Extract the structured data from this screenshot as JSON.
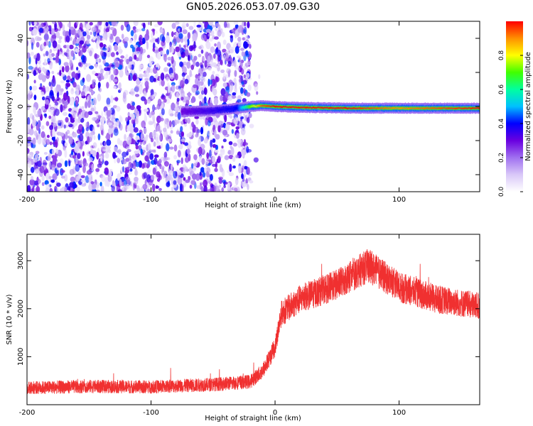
{
  "title": "GN05.2026.053.07.09.G30",
  "chart_data": [
    {
      "type": "heatmap",
      "xlabel": "Height of straight line (km)",
      "ylabel": "Frequency (Hz)",
      "xlim": [
        -200,
        165
      ],
      "ylim": [
        -50,
        50
      ],
      "xticks": [
        -200,
        -100,
        0,
        100
      ],
      "yticks": [
        -40,
        -20,
        0,
        20,
        40
      ],
      "colorbar": {
        "label": "Normalized spectral amplitude",
        "range": [
          0,
          1
        ],
        "ticks": [
          "0.0",
          "0.2",
          "0.4",
          "0.6",
          "0.8"
        ],
        "colormap": [
          "#ffffff",
          "#d9c8f8",
          "#a070f0",
          "#6a00e0",
          "#0000ff",
          "#00c0ff",
          "#00ffa0",
          "#40ff00",
          "#ffff00",
          "#ff9000",
          "#ff0000"
        ]
      },
      "noise_region": {
        "x_range": [
          -200,
          -20
        ],
        "amplitude": [
          0.05,
          0.45
        ],
        "color": "#7b2cf0"
      },
      "signal_band": {
        "points": [
          {
            "x": -75,
            "freq": -3,
            "amp": 0.3
          },
          {
            "x": -50,
            "freq": -2.5,
            "amp": 0.35
          },
          {
            "x": -30,
            "freq": -1,
            "amp": 0.4
          },
          {
            "x": -20,
            "freq": 0,
            "amp": 0.7
          },
          {
            "x": -10,
            "freq": 0.5,
            "amp": 0.95
          },
          {
            "x": 0,
            "freq": 0,
            "amp": 1.0
          },
          {
            "x": 20,
            "freq": -0.5,
            "amp": 1.0
          },
          {
            "x": 60,
            "freq": -1,
            "amp": 1.0
          },
          {
            "x": 100,
            "freq": -1,
            "amp": 0.9
          },
          {
            "x": 130,
            "freq": -1,
            "amp": 0.95
          },
          {
            "x": 165,
            "freq": -1,
            "amp": 1.0
          }
        ]
      },
      "grid": false
    },
    {
      "type": "line",
      "xlabel": "Height of straight line (km)",
      "ylabel": "SNR (10 * v/v)",
      "xlim": [
        -200,
        165
      ],
      "ylim": [
        0,
        3550
      ],
      "xticks": [
        -200,
        -100,
        0,
        100
      ],
      "yticks": [
        1000,
        2000,
        3000
      ],
      "series": [
        {
          "color": "#f03030",
          "trend": [
            {
              "x": -200,
              "y": 350
            },
            {
              "x": -150,
              "y": 380
            },
            {
              "x": -100,
              "y": 370
            },
            {
              "x": -50,
              "y": 420
            },
            {
              "x": -20,
              "y": 480
            },
            {
              "x": -10,
              "y": 700
            },
            {
              "x": 0,
              "y": 1200
            },
            {
              "x": 5,
              "y": 1900
            },
            {
              "x": 20,
              "y": 2200
            },
            {
              "x": 50,
              "y": 2500
            },
            {
              "x": 75,
              "y": 2900
            },
            {
              "x": 100,
              "y": 2450
            },
            {
              "x": 130,
              "y": 2200
            },
            {
              "x": 165,
              "y": 2050
            }
          ],
          "spread": 380
        }
      ],
      "grid": false
    }
  ]
}
